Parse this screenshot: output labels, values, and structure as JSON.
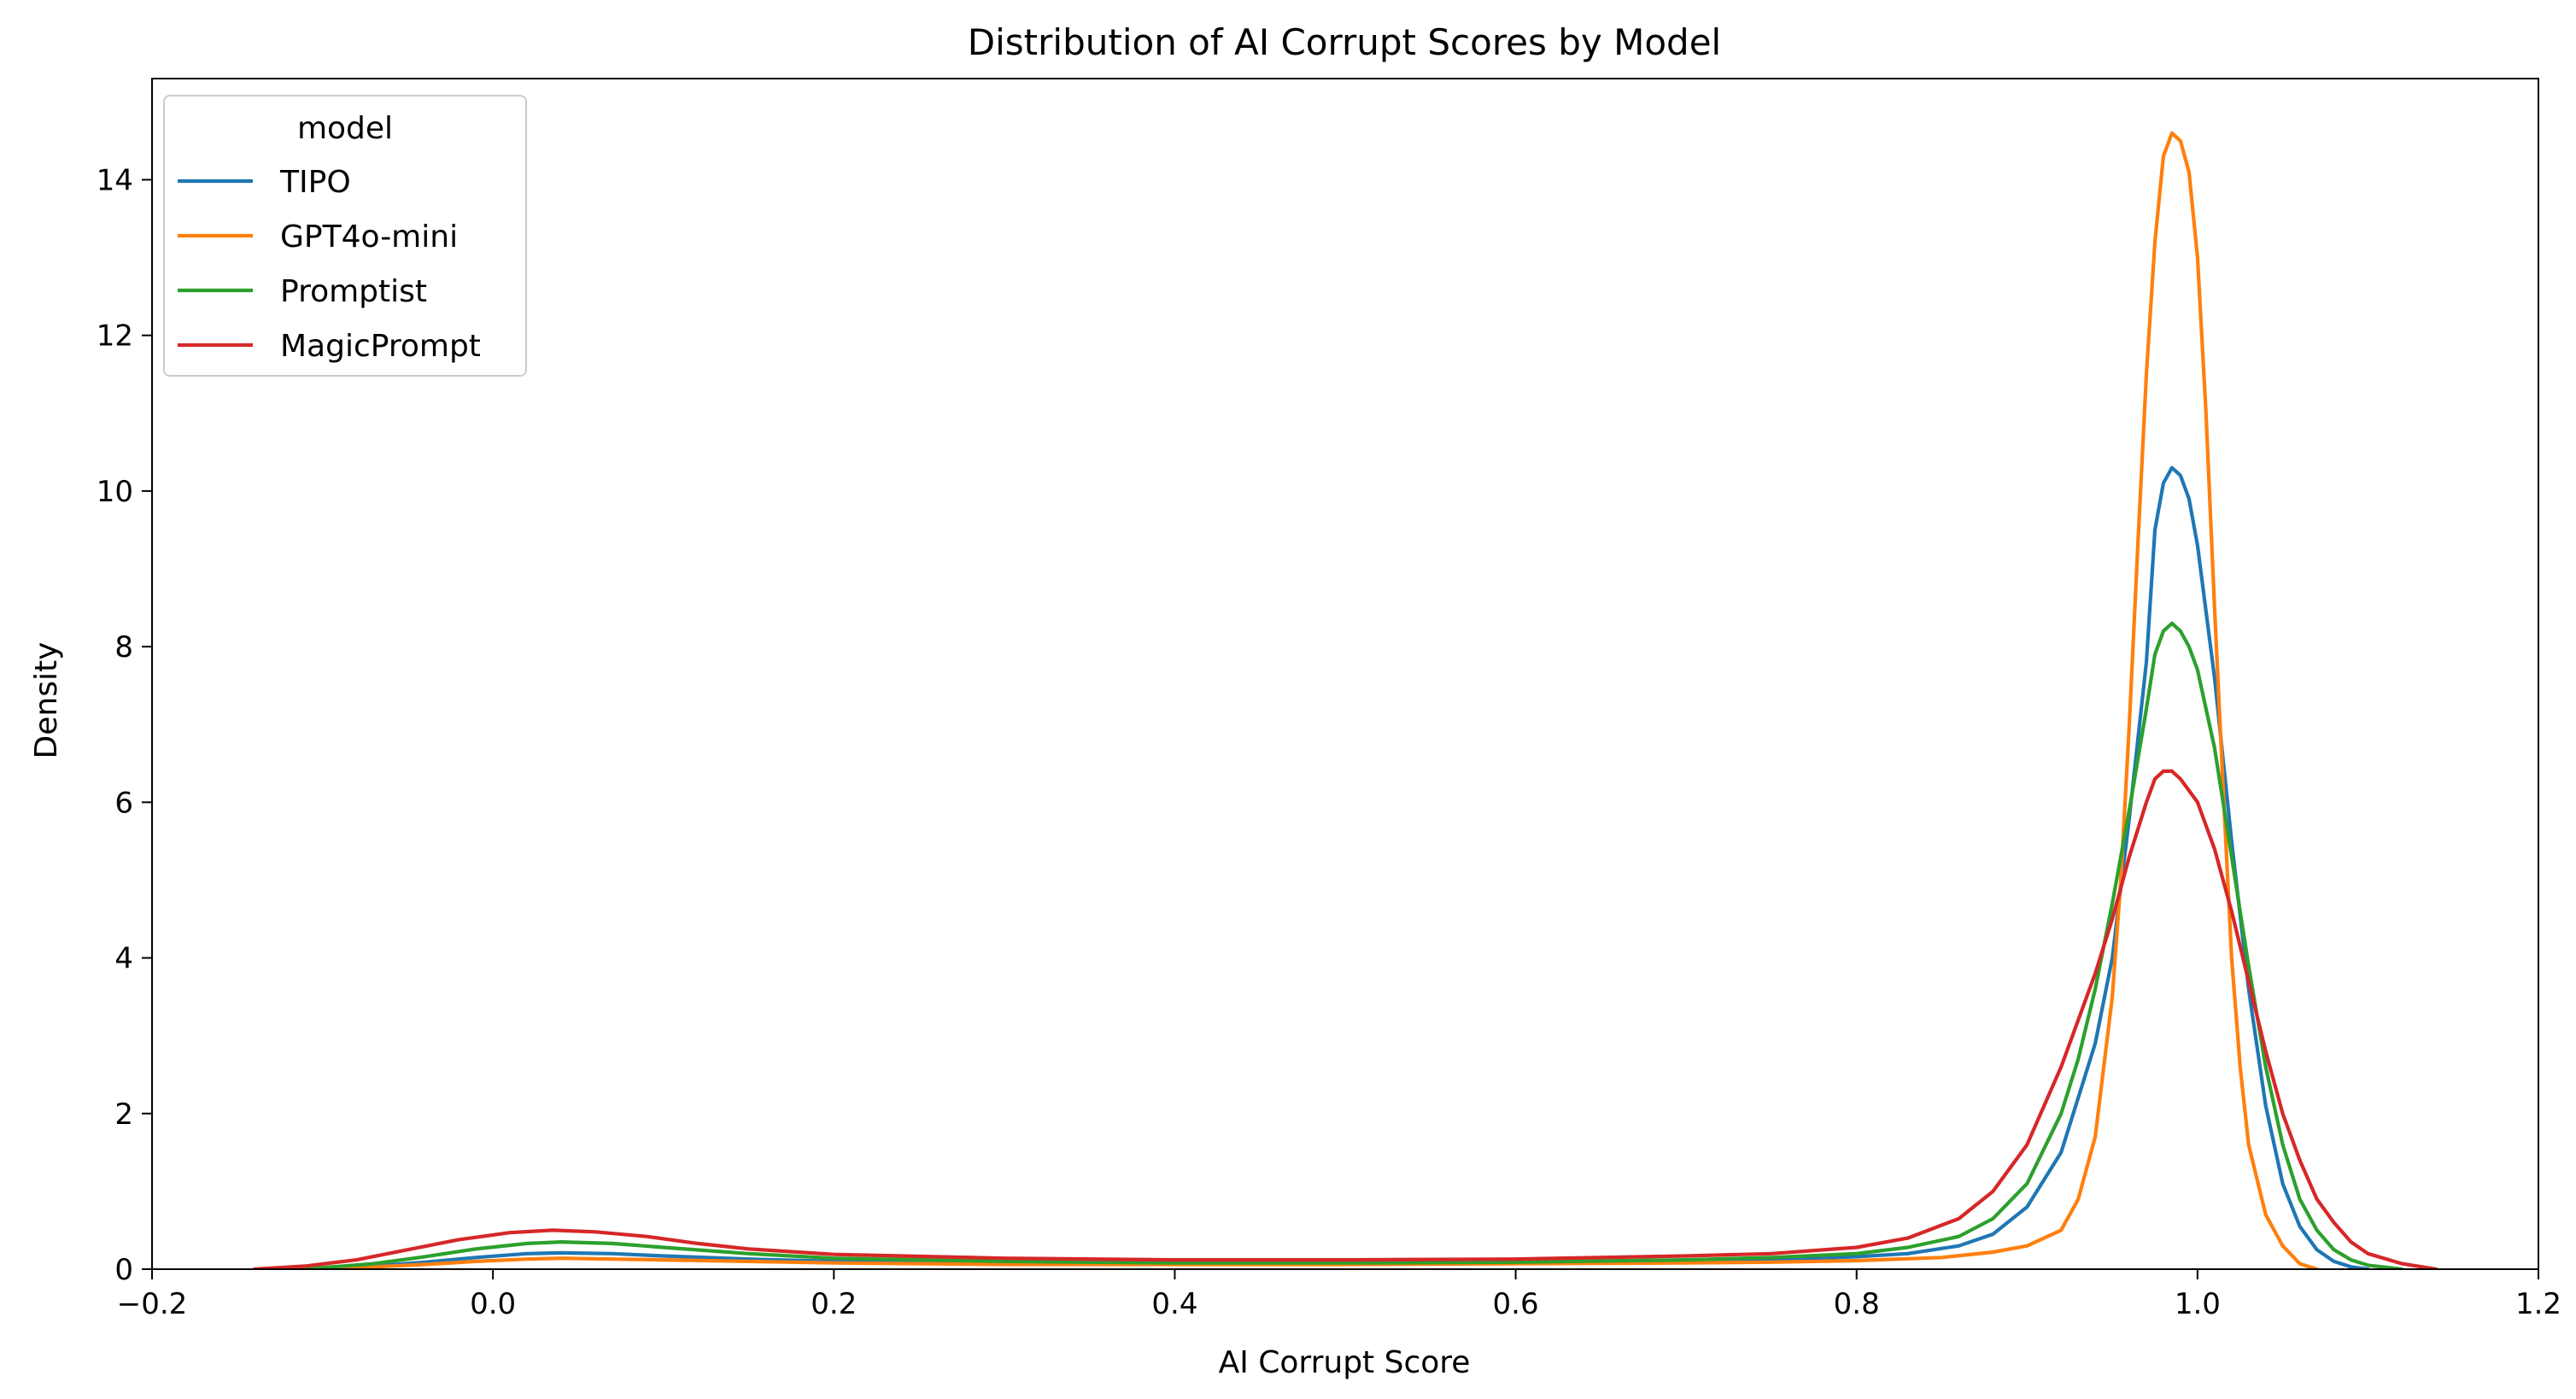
{
  "chart_data": {
    "type": "line",
    "title": "Distribution of AI Corrupt Scores by Model",
    "xlabel": "AI Corrupt Score",
    "ylabel": "Density",
    "xlim": [
      -0.2,
      1.2
    ],
    "ylim": [
      0,
      15.3
    ],
    "x_ticks": [
      -0.2,
      0.0,
      0.2,
      0.4,
      0.6,
      0.8,
      1.0,
      1.2
    ],
    "x_tick_labels": [
      "−0.2",
      "0.0",
      "0.2",
      "0.4",
      "0.6",
      "0.8",
      "1.0",
      "1.2"
    ],
    "y_ticks": [
      0,
      2,
      4,
      6,
      8,
      10,
      12,
      14
    ],
    "y_tick_labels": [
      "0",
      "2",
      "4",
      "6",
      "8",
      "10",
      "12",
      "14"
    ],
    "grid": false,
    "legend": {
      "title": "model",
      "placement": "top-left"
    },
    "series": [
      {
        "name": "TIPO",
        "color": "#1f77b4",
        "points": [
          [
            -0.13,
            0.0
          ],
          [
            -0.1,
            0.01
          ],
          [
            -0.07,
            0.04
          ],
          [
            -0.04,
            0.09
          ],
          [
            -0.01,
            0.15
          ],
          [
            0.02,
            0.2
          ],
          [
            0.04,
            0.21
          ],
          [
            0.07,
            0.2
          ],
          [
            0.1,
            0.17
          ],
          [
            0.15,
            0.13
          ],
          [
            0.2,
            0.1
          ],
          [
            0.3,
            0.08
          ],
          [
            0.4,
            0.07
          ],
          [
            0.5,
            0.07
          ],
          [
            0.6,
            0.08
          ],
          [
            0.7,
            0.1
          ],
          [
            0.75,
            0.12
          ],
          [
            0.8,
            0.16
          ],
          [
            0.83,
            0.2
          ],
          [
            0.86,
            0.3
          ],
          [
            0.88,
            0.45
          ],
          [
            0.9,
            0.8
          ],
          [
            0.92,
            1.5
          ],
          [
            0.94,
            2.9
          ],
          [
            0.95,
            4.0
          ],
          [
            0.96,
            5.8
          ],
          [
            0.97,
            7.8
          ],
          [
            0.975,
            9.5
          ],
          [
            0.98,
            10.1
          ],
          [
            0.985,
            10.3
          ],
          [
            0.99,
            10.2
          ],
          [
            0.995,
            9.9
          ],
          [
            1.0,
            9.3
          ],
          [
            1.01,
            7.6
          ],
          [
            1.02,
            5.5
          ],
          [
            1.03,
            3.6
          ],
          [
            1.04,
            2.1
          ],
          [
            1.05,
            1.1
          ],
          [
            1.06,
            0.55
          ],
          [
            1.07,
            0.25
          ],
          [
            1.08,
            0.1
          ],
          [
            1.09,
            0.03
          ],
          [
            1.1,
            0.0
          ]
        ]
      },
      {
        "name": "GPT4o-mini",
        "color": "#ff7f0e",
        "points": [
          [
            -0.13,
            0.0
          ],
          [
            -0.1,
            0.01
          ],
          [
            -0.07,
            0.03
          ],
          [
            -0.04,
            0.06
          ],
          [
            -0.01,
            0.1
          ],
          [
            0.02,
            0.13
          ],
          [
            0.04,
            0.14
          ],
          [
            0.07,
            0.13
          ],
          [
            0.1,
            0.12
          ],
          [
            0.15,
            0.1
          ],
          [
            0.2,
            0.08
          ],
          [
            0.3,
            0.06
          ],
          [
            0.4,
            0.06
          ],
          [
            0.5,
            0.06
          ],
          [
            0.6,
            0.07
          ],
          [
            0.7,
            0.08
          ],
          [
            0.75,
            0.09
          ],
          [
            0.8,
            0.11
          ],
          [
            0.85,
            0.15
          ],
          [
            0.88,
            0.22
          ],
          [
            0.9,
            0.3
          ],
          [
            0.92,
            0.5
          ],
          [
            0.93,
            0.9
          ],
          [
            0.94,
            1.7
          ],
          [
            0.95,
            3.5
          ],
          [
            0.955,
            5.0
          ],
          [
            0.96,
            7.0
          ],
          [
            0.965,
            9.3
          ],
          [
            0.97,
            11.5
          ],
          [
            0.975,
            13.2
          ],
          [
            0.98,
            14.3
          ],
          [
            0.985,
            14.6
          ],
          [
            0.99,
            14.5
          ],
          [
            0.995,
            14.1
          ],
          [
            1.0,
            13.0
          ],
          [
            1.005,
            11.0
          ],
          [
            1.01,
            8.5
          ],
          [
            1.015,
            6.2
          ],
          [
            1.02,
            4.0
          ],
          [
            1.025,
            2.6
          ],
          [
            1.03,
            1.6
          ],
          [
            1.04,
            0.7
          ],
          [
            1.05,
            0.3
          ],
          [
            1.06,
            0.07
          ],
          [
            1.07,
            0.0
          ]
        ]
      },
      {
        "name": "Promptist",
        "color": "#2ca02c",
        "points": [
          [
            -0.13,
            0.0
          ],
          [
            -0.1,
            0.02
          ],
          [
            -0.07,
            0.07
          ],
          [
            -0.04,
            0.16
          ],
          [
            -0.01,
            0.26
          ],
          [
            0.02,
            0.33
          ],
          [
            0.04,
            0.35
          ],
          [
            0.07,
            0.33
          ],
          [
            0.1,
            0.28
          ],
          [
            0.15,
            0.2
          ],
          [
            0.2,
            0.14
          ],
          [
            0.3,
            0.1
          ],
          [
            0.4,
            0.08
          ],
          [
            0.5,
            0.08
          ],
          [
            0.6,
            0.09
          ],
          [
            0.7,
            0.12
          ],
          [
            0.75,
            0.15
          ],
          [
            0.8,
            0.2
          ],
          [
            0.83,
            0.28
          ],
          [
            0.86,
            0.42
          ],
          [
            0.88,
            0.65
          ],
          [
            0.9,
            1.1
          ],
          [
            0.92,
            2.0
          ],
          [
            0.93,
            2.7
          ],
          [
            0.94,
            3.6
          ],
          [
            0.95,
            4.7
          ],
          [
            0.96,
            5.9
          ],
          [
            0.97,
            7.2
          ],
          [
            0.975,
            7.9
          ],
          [
            0.98,
            8.2
          ],
          [
            0.985,
            8.3
          ],
          [
            0.99,
            8.2
          ],
          [
            0.995,
            8.0
          ],
          [
            1.0,
            7.7
          ],
          [
            1.01,
            6.7
          ],
          [
            1.02,
            5.3
          ],
          [
            1.03,
            3.9
          ],
          [
            1.04,
            2.6
          ],
          [
            1.05,
            1.6
          ],
          [
            1.06,
            0.9
          ],
          [
            1.07,
            0.5
          ],
          [
            1.08,
            0.25
          ],
          [
            1.09,
            0.12
          ],
          [
            1.1,
            0.05
          ],
          [
            1.12,
            0.0
          ]
        ]
      },
      {
        "name": "MagicPrompt",
        "color": "#d62728",
        "points": [
          [
            -0.14,
            0.0
          ],
          [
            -0.11,
            0.04
          ],
          [
            -0.08,
            0.12
          ],
          [
            -0.05,
            0.25
          ],
          [
            -0.02,
            0.38
          ],
          [
            0.01,
            0.47
          ],
          [
            0.035,
            0.5
          ],
          [
            0.06,
            0.48
          ],
          [
            0.09,
            0.42
          ],
          [
            0.12,
            0.33
          ],
          [
            0.15,
            0.26
          ],
          [
            0.2,
            0.19
          ],
          [
            0.3,
            0.14
          ],
          [
            0.4,
            0.12
          ],
          [
            0.5,
            0.12
          ],
          [
            0.6,
            0.13
          ],
          [
            0.7,
            0.17
          ],
          [
            0.75,
            0.2
          ],
          [
            0.8,
            0.28
          ],
          [
            0.83,
            0.4
          ],
          [
            0.86,
            0.65
          ],
          [
            0.88,
            1.0
          ],
          [
            0.9,
            1.6
          ],
          [
            0.92,
            2.6
          ],
          [
            0.94,
            3.8
          ],
          [
            0.95,
            4.5
          ],
          [
            0.96,
            5.3
          ],
          [
            0.97,
            6.0
          ],
          [
            0.975,
            6.3
          ],
          [
            0.98,
            6.4
          ],
          [
            0.985,
            6.4
          ],
          [
            0.99,
            6.3
          ],
          [
            1.0,
            6.0
          ],
          [
            1.01,
            5.4
          ],
          [
            1.02,
            4.6
          ],
          [
            1.03,
            3.7
          ],
          [
            1.04,
            2.8
          ],
          [
            1.05,
            2.0
          ],
          [
            1.06,
            1.4
          ],
          [
            1.07,
            0.9
          ],
          [
            1.08,
            0.6
          ],
          [
            1.09,
            0.35
          ],
          [
            1.1,
            0.2
          ],
          [
            1.12,
            0.07
          ],
          [
            1.14,
            0.0
          ]
        ]
      }
    ]
  }
}
